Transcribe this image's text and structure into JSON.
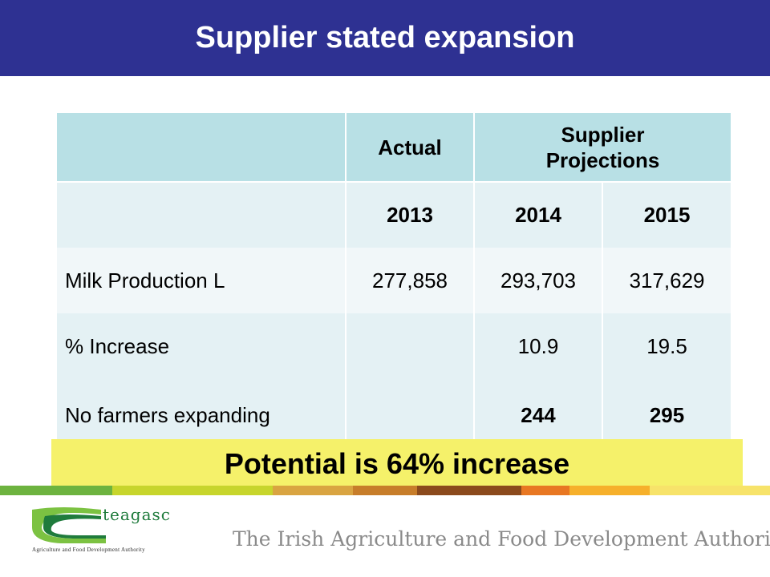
{
  "slide": {
    "title": "Supplier stated expansion"
  },
  "table": {
    "header": {
      "actual": "Actual",
      "projections": "Supplier Projections"
    },
    "years": [
      "2013",
      "2014",
      "2015"
    ],
    "rows": [
      {
        "label": "Milk Production L",
        "values": [
          "277,858",
          "293,703",
          "317,629"
        ]
      },
      {
        "label": "% Increase",
        "values": [
          "",
          "10.9",
          "19.5"
        ]
      },
      {
        "label": "No farmers expanding",
        "values": [
          "",
          "244",
          "295"
        ]
      }
    ]
  },
  "callout": {
    "text": "Potential is 64% increase"
  },
  "footer": {
    "logo_text": "teagasc",
    "logo_tagline": "Agriculture and Food Development Authority",
    "authority_text": "The Irish Agriculture and Food Development Authority"
  },
  "colors": {
    "title_bar": "#2e3192",
    "header_cell": "#b8e0e5",
    "row_light": "#e4f1f4",
    "callout": "#f5f16a"
  }
}
